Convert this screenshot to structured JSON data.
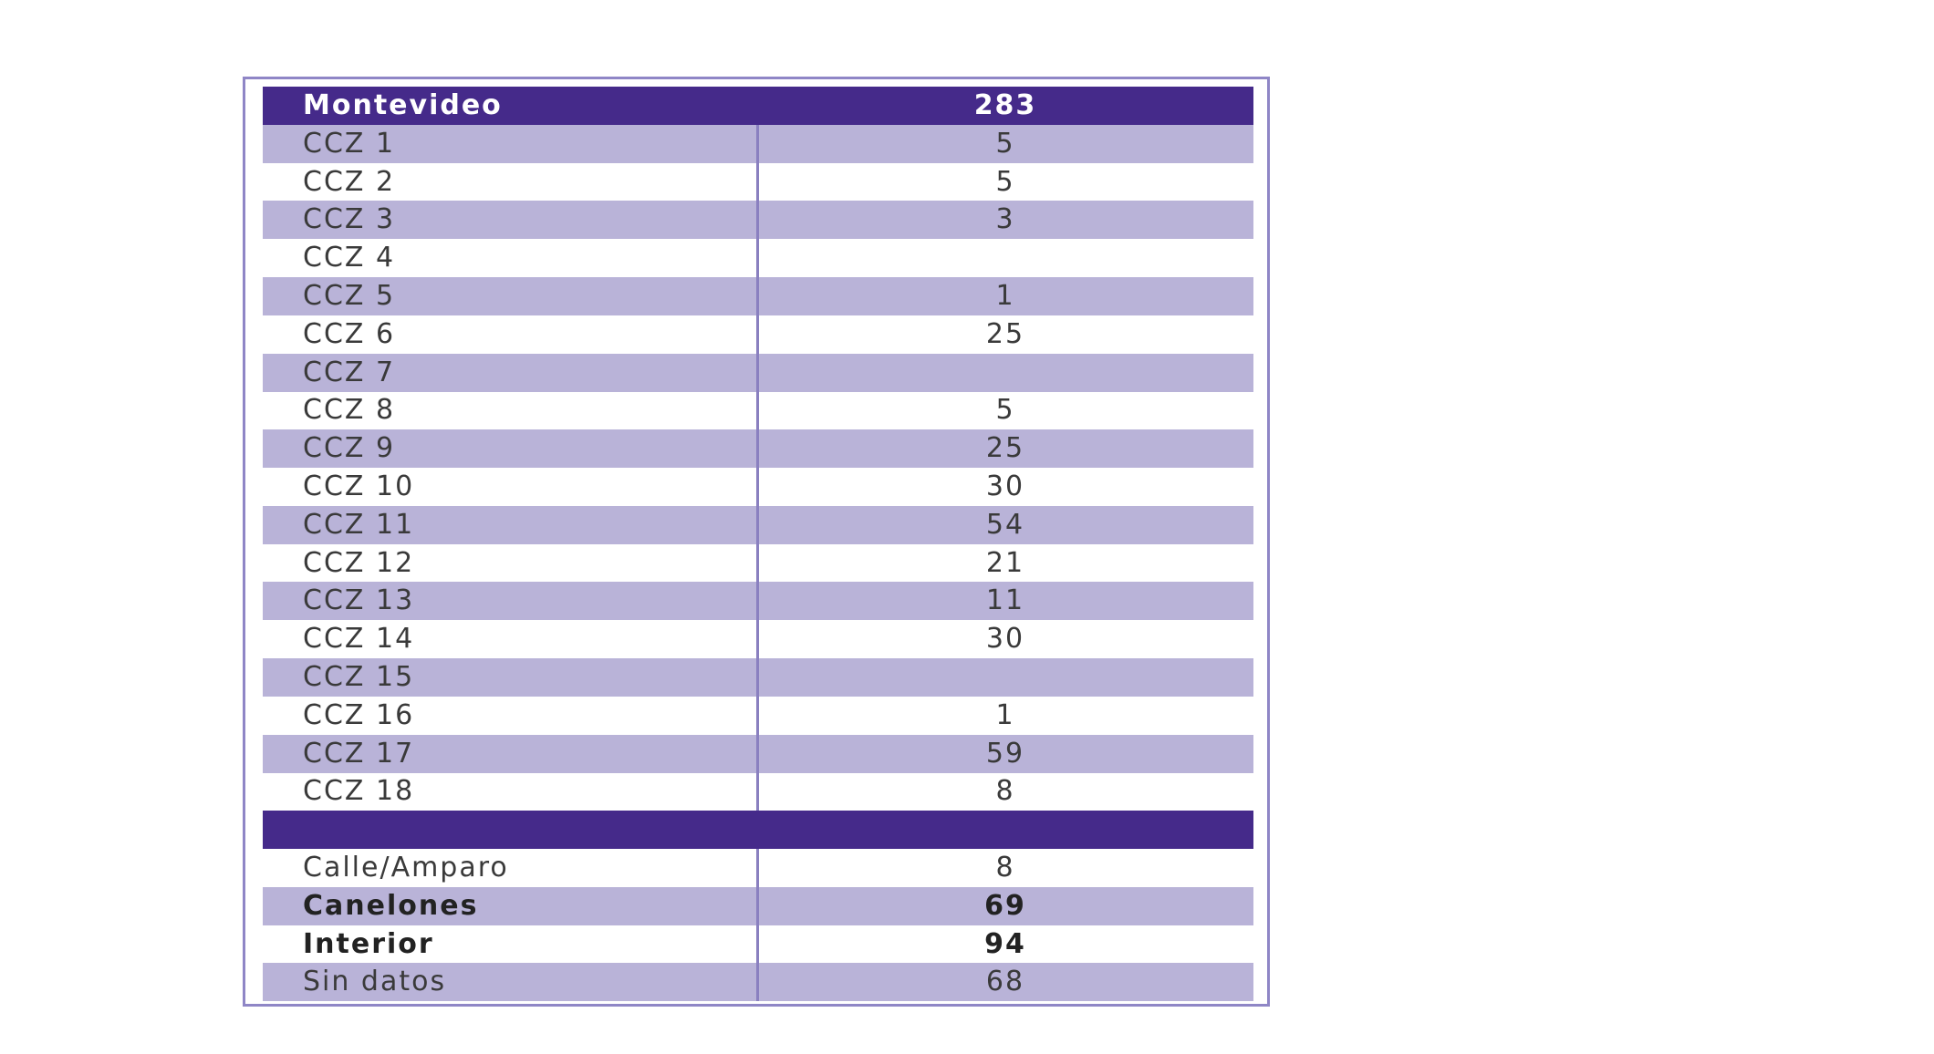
{
  "table": {
    "header": {
      "label": "Montevideo",
      "value": 283
    },
    "rows": [
      {
        "label": "CCZ 1",
        "value": 5
      },
      {
        "label": "CCZ 2",
        "value": 5
      },
      {
        "label": "CCZ 3",
        "value": 3
      },
      {
        "label": "CCZ 4",
        "value": null
      },
      {
        "label": "CCZ 5",
        "value": 1
      },
      {
        "label": "CCZ 6",
        "value": 25
      },
      {
        "label": "CCZ 7",
        "value": null
      },
      {
        "label": "CCZ 8",
        "value": 5
      },
      {
        "label": "CCZ 9",
        "value": 25
      },
      {
        "label": "CCZ 10",
        "value": 30
      },
      {
        "label": "CCZ 11",
        "value": 54
      },
      {
        "label": "CCZ 12",
        "value": 21
      },
      {
        "label": "CCZ 13",
        "value": 11
      },
      {
        "label": "CCZ 14",
        "value": 30
      },
      {
        "label": "CCZ 15",
        "value": null
      },
      {
        "label": "CCZ 16",
        "value": 1
      },
      {
        "label": "CCZ 17",
        "value": 59
      },
      {
        "label": "CCZ 18",
        "value": 8
      }
    ],
    "extra_rows": [
      {
        "label": "Calle/Amparo",
        "value": 8,
        "bold": false
      },
      {
        "label": "Canelones",
        "value": 69,
        "bold": true
      },
      {
        "label": "Interior",
        "value": 94,
        "bold": true
      },
      {
        "label": "Sin datos",
        "value": 68,
        "bold": false
      }
    ]
  }
}
